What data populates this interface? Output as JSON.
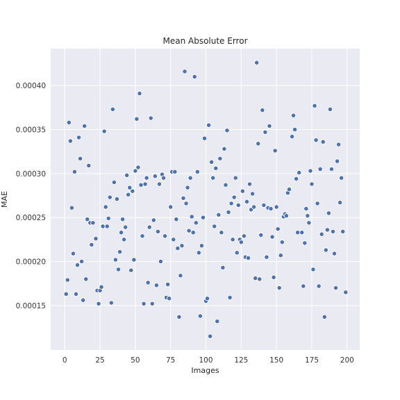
{
  "chart_data": {
    "type": "scatter",
    "title": "Mean Absolute Error",
    "x_label": "Images",
    "y_label": "MAE",
    "color": "#4c72b0",
    "grid": true,
    "xlim": [
      -9.95,
      208.95
    ],
    "ylim": [
      9.94e-05,
      0.000442
    ],
    "xticks": [
      0,
      25,
      50,
      75,
      100,
      125,
      150,
      175,
      200
    ],
    "yticks": [
      0.00015,
      {
        "value": 0.0002,
        "label": "0.00020"
      },
      0.00025,
      {
        "value": 0.0003,
        "label": "0.00030"
      },
      0.00035,
      {
        "value": 0.0004,
        "label": "0.00040"
      }
    ],
    "x": [
      1,
      2,
      3,
      4,
      5,
      6,
      7,
      8,
      9,
      10,
      11,
      12,
      13,
      14,
      15,
      16,
      17,
      18,
      19,
      20,
      22,
      23,
      24,
      25,
      26,
      27,
      28,
      29,
      30,
      31,
      32,
      33,
      34,
      35,
      36,
      37,
      38,
      39,
      40,
      41,
      42,
      43,
      44,
      45,
      46,
      47,
      48,
      49,
      50,
      51,
      52,
      53,
      54,
      55,
      56,
      57,
      58,
      59,
      60,
      61,
      62,
      63,
      64,
      65,
      66,
      67,
      68,
      69,
      70,
      71,
      72,
      73,
      74,
      75,
      76,
      77,
      78,
      79,
      80,
      81,
      82,
      83,
      84,
      85,
      86,
      87,
      88,
      89,
      90,
      91,
      92,
      93,
      94,
      95,
      96,
      97,
      98,
      99,
      100,
      101,
      102,
      103,
      104,
      105,
      106,
      107,
      108,
      109,
      110,
      111,
      112,
      113,
      114,
      115,
      116,
      117,
      118,
      119,
      120,
      121,
      122,
      123,
      124,
      125,
      126,
      127,
      128,
      129,
      130,
      131,
      132,
      133,
      134,
      135,
      136,
      137,
      138,
      139,
      140,
      141,
      142,
      143,
      144,
      145,
      146,
      147,
      148,
      149,
      150,
      151,
      152,
      153,
      154,
      155,
      156,
      157,
      158,
      159,
      161,
      162,
      163,
      164,
      165,
      166,
      168,
      169,
      170,
      171,
      172,
      173,
      174,
      175,
      176,
      177,
      178,
      179,
      180,
      181,
      182,
      183,
      184,
      185,
      186,
      187,
      188,
      189,
      190,
      191,
      192,
      193,
      194,
      195,
      196,
      197,
      199
    ],
    "values": [
      0.000163,
      0.000179,
      0.000358,
      0.000337,
      0.000261,
      0.000209,
      0.000302,
      0.000163,
      0.000196,
      0.000341,
      0.000317,
      0.0002,
      0.000156,
      0.000354,
      0.00018,
      0.000248,
      0.000309,
      0.000244,
      0.000219,
      0.000244,
      0.000226,
      0.000167,
      0.000152,
      0.000167,
      0.000171,
      0.00024,
      0.000348,
      0.000262,
      0.00024,
      0.000249,
      0.000273,
      0.000153,
      0.000373,
      0.00029,
      0.000202,
      0.000271,
      0.000191,
      0.000211,
      0.000233,
      0.000248,
      0.000225,
      0.000239,
      0.000298,
      0.000276,
      0.000284,
      0.00019,
      0.00028,
      0.000202,
      0.000303,
      0.000362,
      0.000307,
      0.000391,
      0.000287,
      0.000229,
      0.000152,
      0.000288,
      0.000295,
      0.000176,
      0.000239,
      0.000363,
      0.000152,
      0.000247,
      0.000297,
      0.000173,
      0.000234,
      0.000288,
      0.0002,
      0.000299,
      0.000295,
      0.000229,
      0.000159,
      0.000174,
      0.000158,
      0.000262,
      0.000302,
      0.000225,
      0.000302,
      0.000248,
      0.000215,
      0.000137,
      0.000184,
      0.000218,
      0.000272,
      0.000416,
      0.000266,
      0.000284,
      0.000235,
      0.000295,
      0.000251,
      0.000233,
      0.00041,
      0.000244,
      0.000302,
      0.00021,
      0.000138,
      0.000218,
      0.00025,
      0.00034,
      0.000155,
      0.000158,
      0.000355,
      0.000115,
      0.000313,
      0.000295,
      0.00024,
      0.000306,
      0.000132,
      0.000253,
      0.000317,
      0.000233,
      0.000193,
      0.000328,
      0.000287,
      0.000349,
      0.000256,
      0.000159,
      0.000266,
      0.000225,
      0.000273,
      0.000295,
      0.00021,
      0.000264,
      0.000225,
      0.000222,
      0.00028,
      0.000229,
      0.000205,
      0.000268,
      0.000204,
      0.000288,
      0.000259,
      0.000277,
      0.000262,
      0.000181,
      0.000426,
      0.000334,
      0.00018,
      0.00023,
      0.000372,
      0.000264,
      0.000347,
      0.000205,
      0.000261,
      0.000354,
      0.00026,
      0.000228,
      0.000182,
      0.000326,
      0.000262,
      0.000237,
      0.00017,
      0.000207,
      0.000222,
      0.000251,
      0.000254,
      0.000252,
      0.000278,
      0.000282,
      0.000342,
      0.000366,
      0.00035,
      0.000294,
      0.000233,
      0.000301,
      0.000233,
      0.000172,
      0.000221,
      0.00026,
      0.000252,
      0.000244,
      0.000303,
      0.000288,
      0.000191,
      0.000377,
      0.000338,
      0.000266,
      0.000172,
      0.000305,
      0.000231,
      0.000336,
      0.000137,
      0.000213,
      0.000236,
      0.000255,
      0.000373,
      0.000305,
      0.000234,
      0.000209,
      0.00017,
      0.000314,
      0.000333,
      0.000267,
      0.000295,
      0.000234,
      0.000165
    ]
  }
}
